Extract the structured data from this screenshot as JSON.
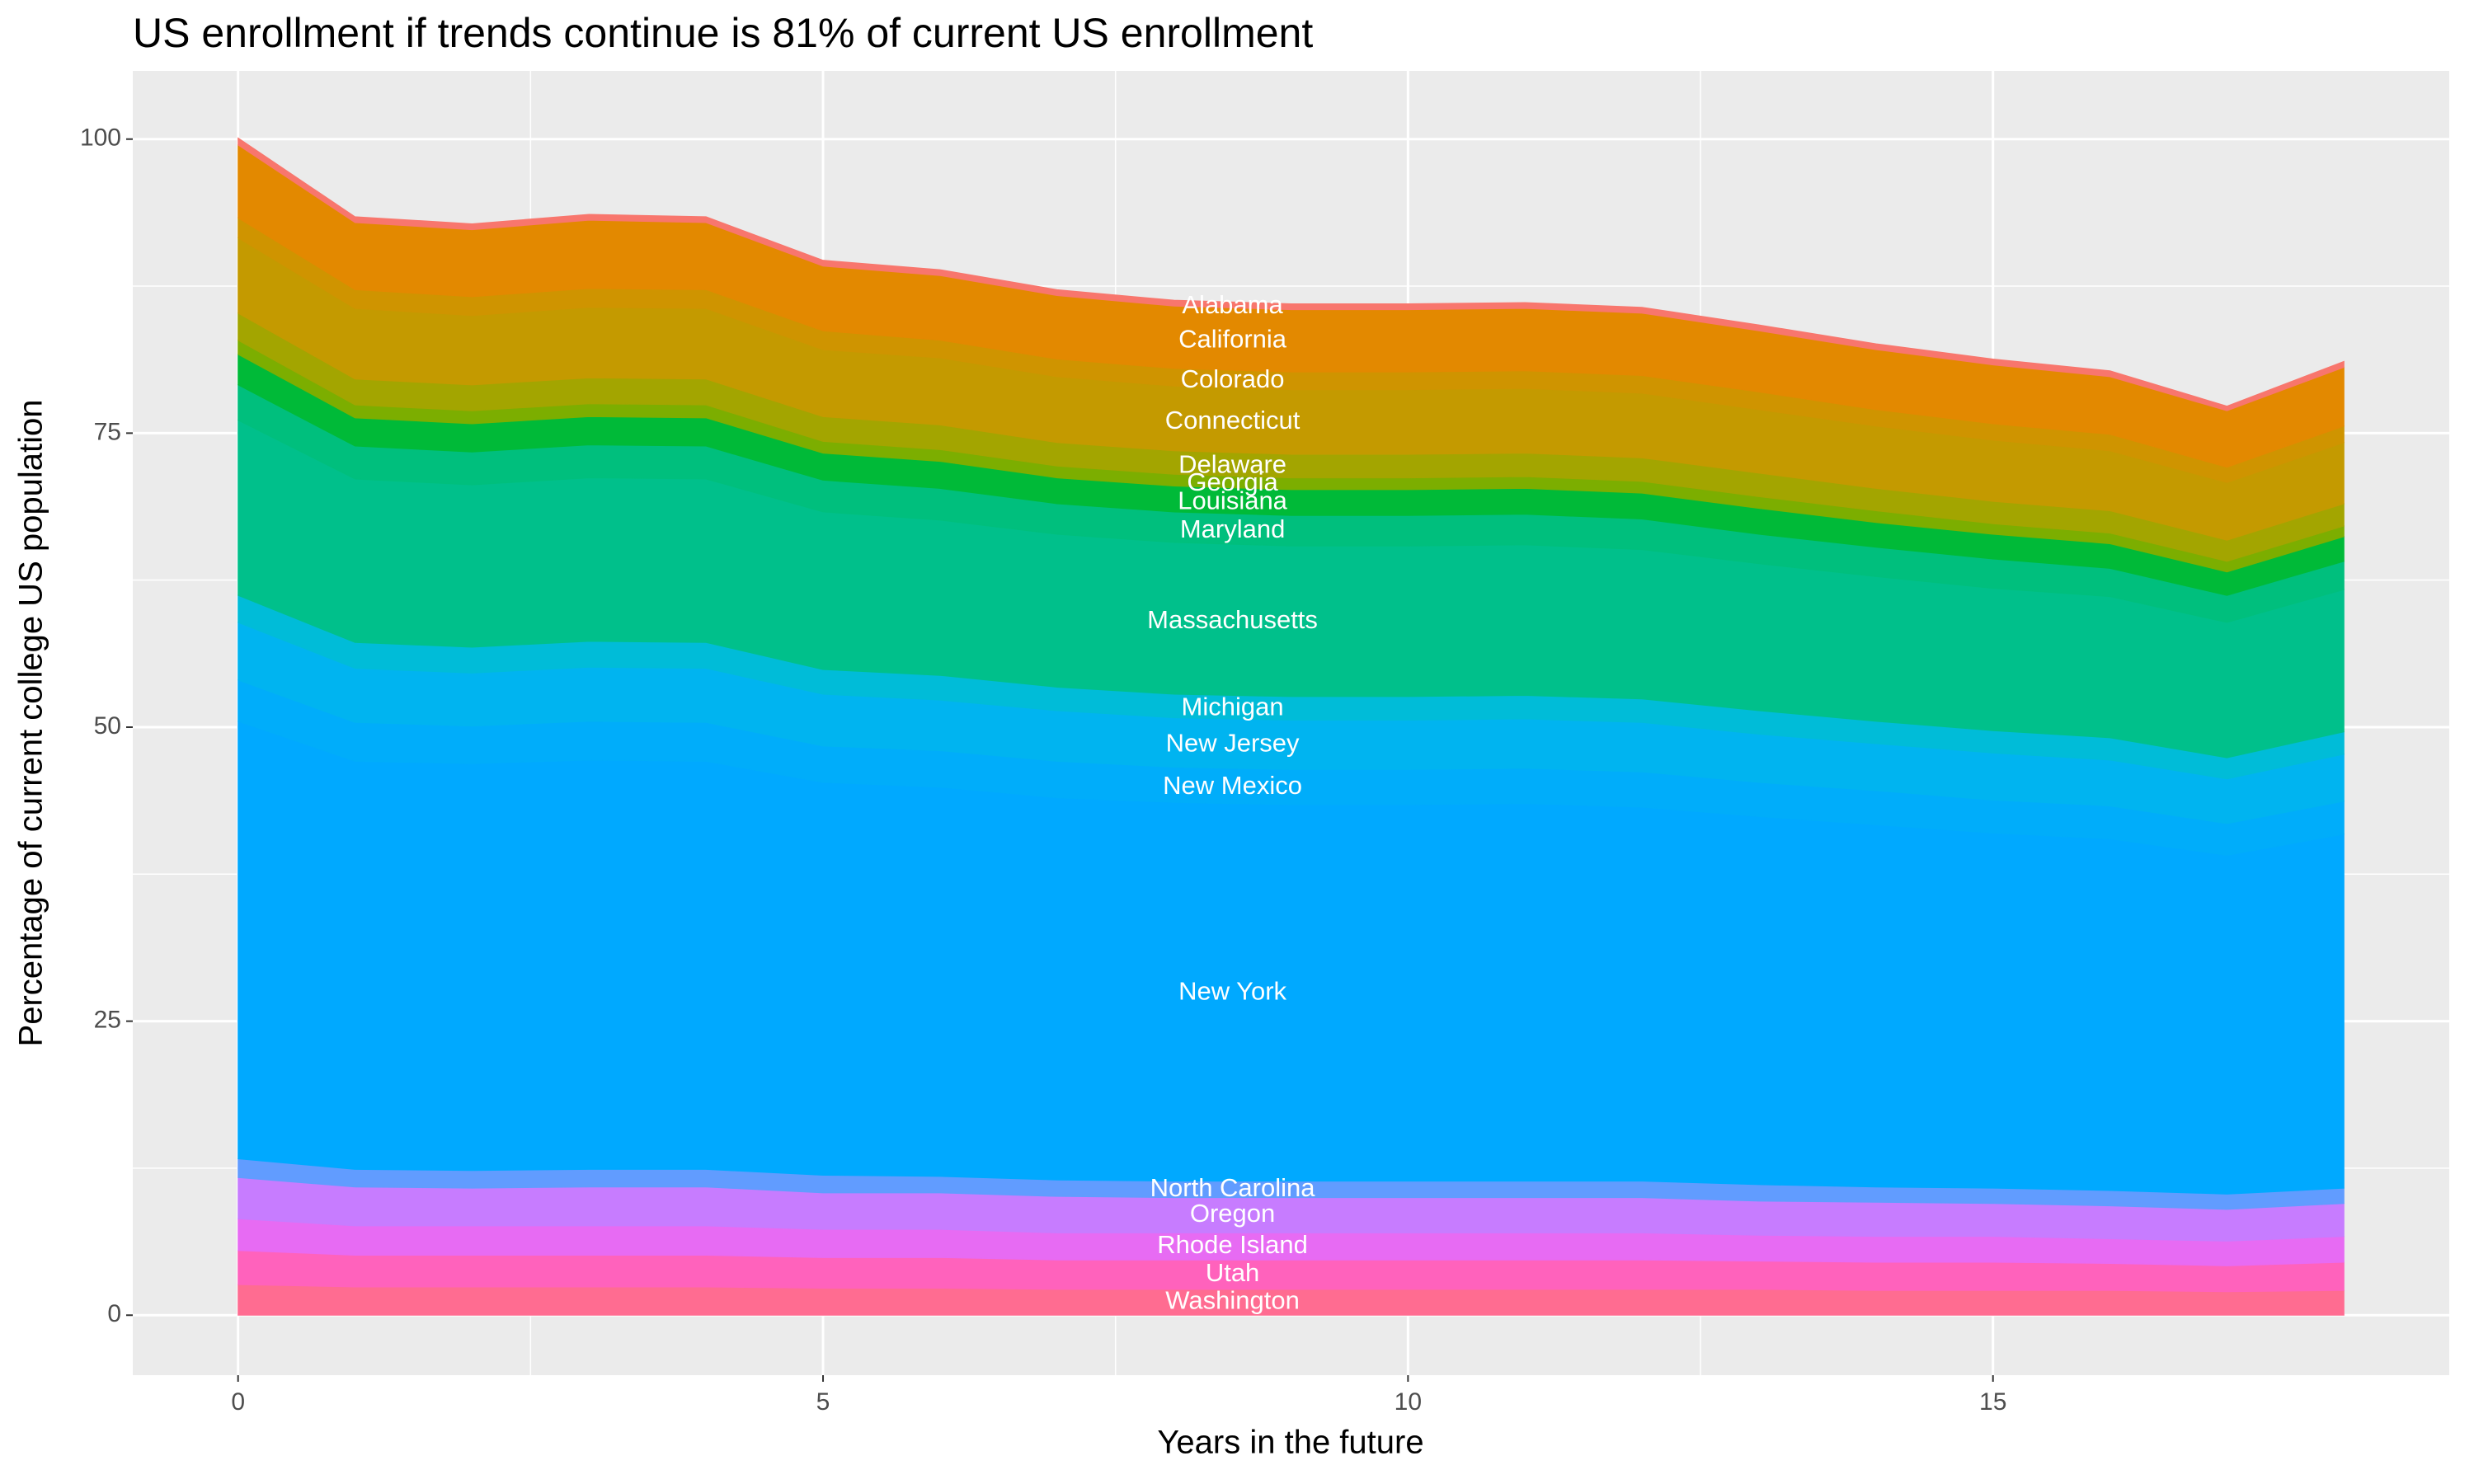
{
  "chart_data": {
    "type": "stacked_area",
    "title": "US enrollment if trends continue is 81% of current US enrollment",
    "x_label": "Years in the future",
    "y_label": "Percentage of current college US population",
    "x": [
      0,
      1,
      2,
      3,
      4,
      5,
      6,
      7,
      8,
      9,
      10,
      11,
      12,
      13,
      14,
      15,
      16,
      17,
      18
    ],
    "xlim": [
      -0.9,
      18.9
    ],
    "xticks": [
      0,
      5,
      10,
      15
    ],
    "ylim": [
      -5.1,
      105.8
    ],
    "yticks": [
      0,
      25,
      50,
      75,
      100
    ],
    "grid": true,
    "series": [
      {
        "name": "Washington",
        "color": "#FF6C91",
        "values": [
          2.6,
          2.4,
          2.4,
          2.4,
          2.4,
          2.3,
          2.3,
          2.2,
          2.2,
          2.2,
          2.2,
          2.2,
          2.2,
          2.2,
          2.1,
          2.1,
          2.1,
          2.0,
          2.1
        ]
      },
      {
        "name": "Utah",
        "color": "#FF62BC",
        "values": [
          2.9,
          2.7,
          2.7,
          2.7,
          2.7,
          2.6,
          2.6,
          2.5,
          2.5,
          2.5,
          2.5,
          2.5,
          2.5,
          2.4,
          2.4,
          2.4,
          2.3,
          2.2,
          2.4
        ]
      },
      {
        "name": "Rhode Island",
        "color": "#E76BF3",
        "values": [
          2.7,
          2.5,
          2.5,
          2.5,
          2.5,
          2.4,
          2.4,
          2.3,
          2.3,
          2.3,
          2.3,
          2.3,
          2.3,
          2.2,
          2.2,
          2.2,
          2.1,
          2.1,
          2.2
        ]
      },
      {
        "name": "Oregon",
        "color": "#C77CFF",
        "values": [
          3.5,
          3.3,
          3.2,
          3.3,
          3.3,
          3.1,
          3.1,
          3.1,
          3.0,
          3.0,
          3.0,
          3.0,
          3.0,
          2.9,
          2.9,
          2.8,
          2.8,
          2.7,
          2.8
        ]
      },
      {
        "name": "North Carolina",
        "color": "#619CFF",
        "values": [
          1.6,
          1.5,
          1.5,
          1.5,
          1.5,
          1.5,
          1.4,
          1.4,
          1.4,
          1.4,
          1.4,
          1.4,
          1.4,
          1.4,
          1.3,
          1.3,
          1.3,
          1.3,
          1.3
        ]
      },
      {
        "name": "New York",
        "color": "#00A9FF",
        "values": [
          37.2,
          34.7,
          34.6,
          34.8,
          34.7,
          33.4,
          33.1,
          32.5,
          32.2,
          32.0,
          32.0,
          32.1,
          31.8,
          31.3,
          30.8,
          30.2,
          29.9,
          28.8,
          30.1
        ]
      },
      {
        "name": "New Mexico",
        "color": "#00ADFA",
        "values": [
          3.5,
          3.3,
          3.2,
          3.3,
          3.3,
          3.1,
          3.1,
          3.1,
          3.0,
          3.0,
          3.0,
          3.0,
          3.0,
          2.9,
          2.9,
          2.8,
          2.8,
          2.7,
          2.8
        ]
      },
      {
        "name": "New Jersey",
        "color": "#00B4F0",
        "values": [
          4.9,
          4.6,
          4.5,
          4.6,
          4.6,
          4.4,
          4.3,
          4.3,
          4.2,
          4.2,
          4.2,
          4.2,
          4.2,
          4.1,
          4.0,
          4.0,
          3.9,
          3.8,
          4.0
        ]
      },
      {
        "name": "Michigan",
        "color": "#00BCD8",
        "values": [
          2.3,
          2.2,
          2.2,
          2.2,
          2.2,
          2.1,
          2.1,
          2.0,
          2.0,
          2.0,
          2.0,
          2.0,
          2.0,
          2.0,
          1.9,
          1.9,
          1.9,
          1.8,
          1.9
        ]
      },
      {
        "name": "Massachusetts",
        "color": "#00C08B",
        "values": [
          14.9,
          13.9,
          13.8,
          13.9,
          13.9,
          13.4,
          13.2,
          13.0,
          12.9,
          12.8,
          12.8,
          12.8,
          12.7,
          12.5,
          12.3,
          12.1,
          12.0,
          11.5,
          12.1
        ]
      },
      {
        "name": "Maryland",
        "color": "#00BF7D",
        "values": [
          3.0,
          2.8,
          2.8,
          2.8,
          2.8,
          2.7,
          2.7,
          2.6,
          2.6,
          2.6,
          2.6,
          2.6,
          2.6,
          2.5,
          2.5,
          2.5,
          2.4,
          2.3,
          2.4
        ]
      },
      {
        "name": "Louisiana",
        "color": "#00BA38",
        "values": [
          2.6,
          2.4,
          2.4,
          2.4,
          2.4,
          2.3,
          2.3,
          2.2,
          2.2,
          2.2,
          2.2,
          2.2,
          2.2,
          2.2,
          2.1,
          2.1,
          2.1,
          2.0,
          2.1
        ]
      },
      {
        "name": "Georgia",
        "color": "#7CAE00",
        "values": [
          1.2,
          1.1,
          1.1,
          1.1,
          1.1,
          1.0,
          1.0,
          1.0,
          1.0,
          1.0,
          1.0,
          1.0,
          1.0,
          1.0,
          1.0,
          0.9,
          0.9,
          0.9,
          0.9
        ]
      },
      {
        "name": "Delaware",
        "color": "#A3A500",
        "values": [
          2.3,
          2.2,
          2.2,
          2.2,
          2.2,
          2.1,
          2.1,
          2.0,
          2.0,
          2.0,
          2.0,
          2.0,
          2.0,
          2.0,
          1.9,
          1.9,
          1.9,
          1.8,
          1.9
        ]
      },
      {
        "name": "Connecticut",
        "color": "#C49A00",
        "values": [
          6.4,
          6.0,
          5.9,
          6.0,
          6.0,
          5.7,
          5.7,
          5.6,
          5.5,
          5.5,
          5.5,
          5.5,
          5.5,
          5.4,
          5.3,
          5.2,
          5.1,
          4.9,
          5.2
        ]
      },
      {
        "name": "Colorado",
        "color": "#CF9400",
        "values": [
          1.7,
          1.6,
          1.6,
          1.6,
          1.6,
          1.6,
          1.5,
          1.5,
          1.5,
          1.5,
          1.5,
          1.5,
          1.5,
          1.5,
          1.4,
          1.4,
          1.4,
          1.3,
          1.4
        ]
      },
      {
        "name": "California",
        "color": "#E38900",
        "values": [
          6.2,
          5.7,
          5.7,
          5.8,
          5.7,
          5.5,
          5.5,
          5.4,
          5.3,
          5.3,
          5.3,
          5.3,
          5.3,
          5.2,
          5.1,
          5.0,
          4.9,
          4.8,
          5.0
        ]
      },
      {
        "name": "Alabama",
        "color": "#F8766D",
        "values": [
          0.6,
          0.5,
          0.5,
          0.5,
          0.5,
          0.5,
          0.5,
          0.5,
          0.5,
          0.5,
          0.5,
          0.5,
          0.5,
          0.5,
          0.5,
          0.5,
          0.5,
          0.4,
          0.5
        ]
      }
    ]
  }
}
